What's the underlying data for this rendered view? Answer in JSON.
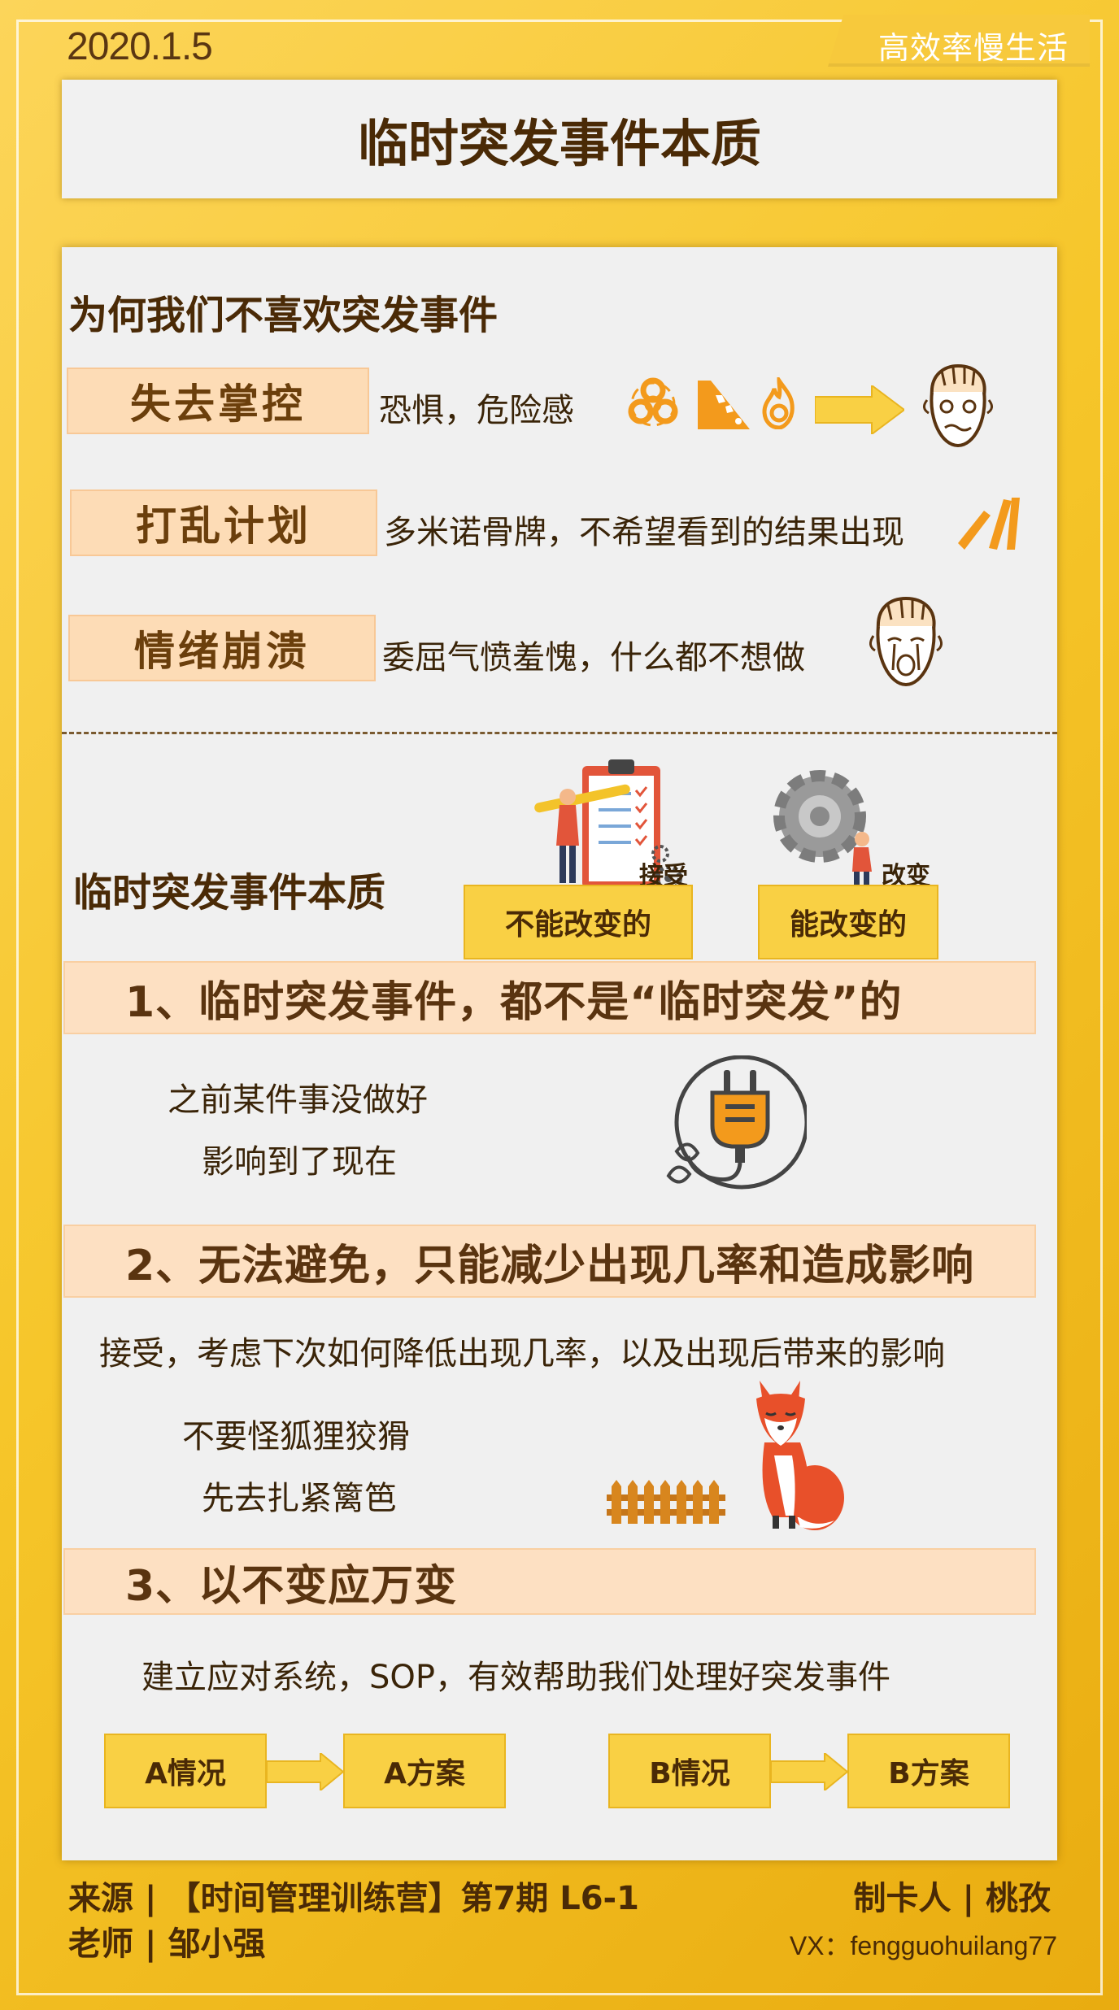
{
  "header": {
    "date": "2020.1.5",
    "brand": "高效率慢生活",
    "title": "临时突发事件本质"
  },
  "section1": {
    "title": "为何我们不喜欢突发事件",
    "items": [
      {
        "tag": "失去掌控",
        "desc": "恐惧，危险感"
      },
      {
        "tag": "打乱计划",
        "desc": "多米诺骨牌，不希望看到的结果出现"
      },
      {
        "tag": "情绪崩溃",
        "desc": "委屈气愤羞愧，什么都不想做"
      }
    ]
  },
  "section2": {
    "title": "临时突发事件本质",
    "accept_label": "接受",
    "change_label": "改变",
    "cannot_change": "不能改变的",
    "can_change": "能改变的"
  },
  "points": [
    {
      "heading": "1、临时突发事件，都不是“临时突发”的",
      "lines": [
        "之前某件事没做好",
        "影响到了现在"
      ]
    },
    {
      "heading": "2、无法避免，只能减少出现几率和造成影响",
      "intro": "接受，考虑下次如何降低出现几率，以及出现后带来的影响",
      "lines": [
        "不要怪狐狸狡猾",
        "先去扎紧篱笆"
      ]
    },
    {
      "heading": "3、以不变应万变",
      "intro": "建立应对系统，SOP，有效帮助我们处理好突发事件",
      "flow": [
        "A情况",
        "A方案",
        "B情况",
        "B方案"
      ]
    }
  ],
  "footer": {
    "source": "来源 | 【时间管理训练营】第7期  L6-1",
    "teacher": "老师 | 邹小强",
    "maker": "制卡人 | 桃孜",
    "vx": "VX：fengguohuilang77"
  },
  "colors": {
    "accent": "#f9d044",
    "tag_bg": "#fddcb6",
    "text": "#4a2a06",
    "icon_orange": "#f39a1c"
  }
}
